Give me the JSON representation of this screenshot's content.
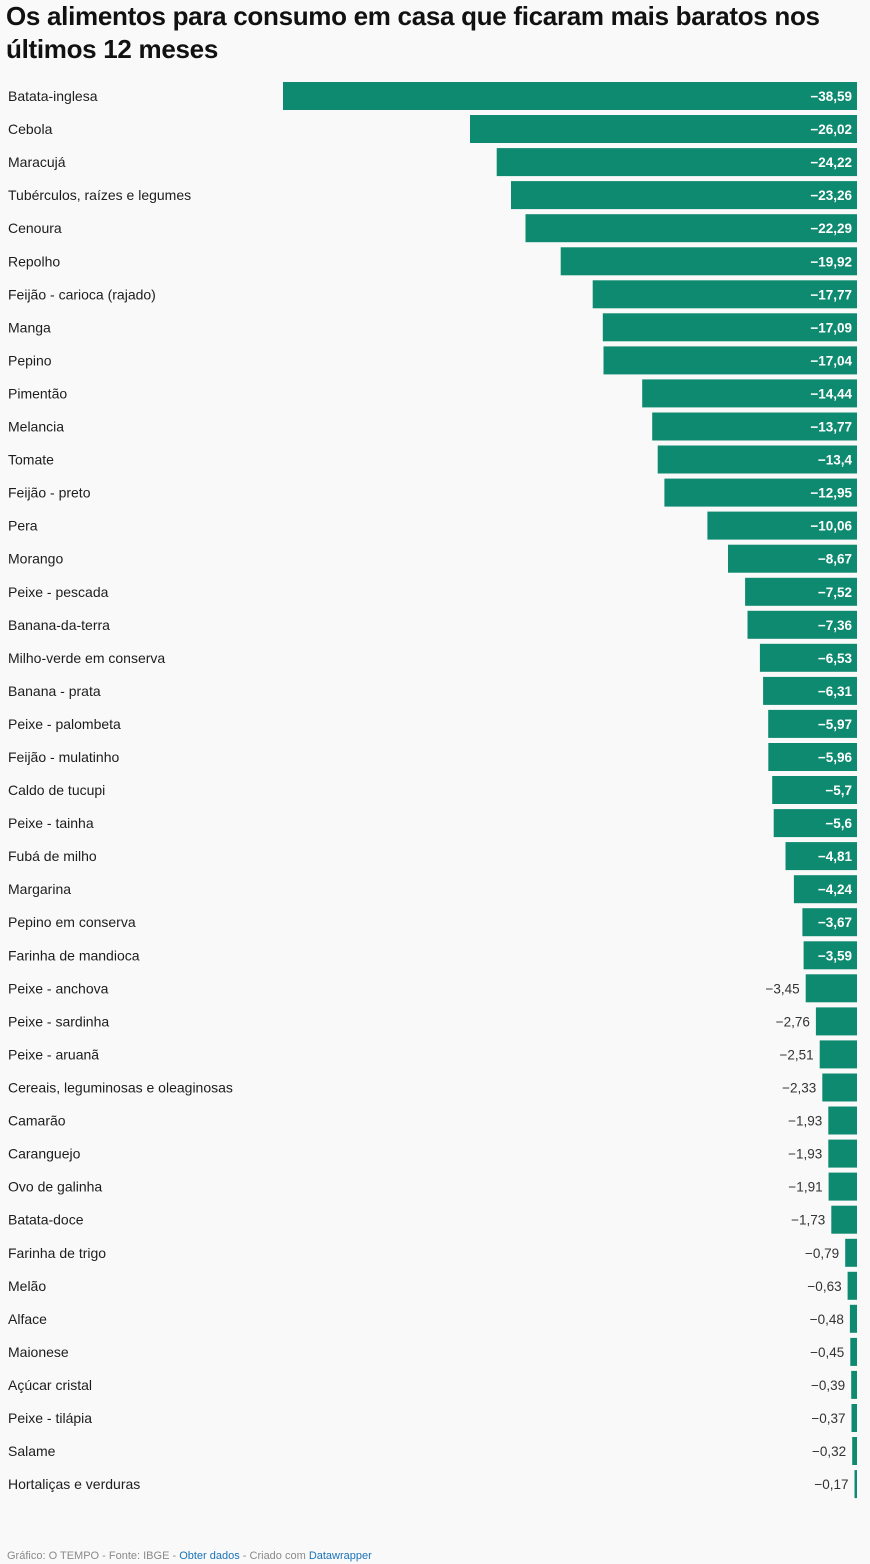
{
  "title": "Os alimentos para consumo em casa que ficaram mais baratos nos últimos 12 meses",
  "colors": {
    "bar": "#0d8a6f",
    "label_inside": "#ffffff",
    "label_outside": "#333333",
    "link": "#1a73b8"
  },
  "footer": {
    "grafico": "Gráfico: O TEMPO",
    "sep1": " - ",
    "fonte": "Fonte: IBGE",
    "sep2": " - ",
    "obter": "Obter dados",
    "sep3": " - ",
    "criado": "Criado com ",
    "datawrapper": "Datawrapper"
  },
  "chart_data": {
    "type": "bar",
    "orientation": "horizontal",
    "categories": [
      "Batata-inglesa",
      "Cebola",
      "Maracujá",
      "Tubérculos, raízes e legumes",
      "Cenoura",
      "Repolho",
      "Feijão - carioca (rajado)",
      "Manga",
      "Pepino",
      "Pimentão",
      "Melancia",
      "Tomate",
      "Feijão - preto",
      "Pera",
      "Morango",
      "Peixe - pescada",
      "Banana-da-terra",
      "Milho-verde em conserva",
      "Banana - prata",
      "Peixe - palombeta",
      "Feijão - mulatinho",
      "Caldo de tucupi",
      "Peixe - tainha",
      "Fubá de milho",
      "Margarina",
      "Pepino em conserva",
      "Farinha de mandioca",
      "Peixe - anchova",
      "Peixe - sardinha",
      "Peixe - aruanã",
      "Cereais, leguminosas e oleaginosas",
      "Camarão",
      "Caranguejo",
      "Ovo de galinha",
      "Batata-doce",
      "Farinha de trigo",
      "Melão",
      "Alface",
      "Maionese",
      "Açúcar cristal",
      "Peixe - tilápia",
      "Salame",
      "Hortaliças e verduras"
    ],
    "values": [
      -38.59,
      -26.02,
      -24.22,
      -23.26,
      -22.29,
      -19.92,
      -17.77,
      -17.09,
      -17.04,
      -14.44,
      -13.77,
      -13.4,
      -12.95,
      -10.06,
      -8.67,
      -7.52,
      -7.36,
      -6.53,
      -6.31,
      -5.97,
      -5.96,
      -5.7,
      -5.6,
      -4.81,
      -4.24,
      -3.67,
      -3.59,
      -3.45,
      -2.76,
      -2.51,
      -2.33,
      -1.93,
      -1.93,
      -1.91,
      -1.73,
      -0.79,
      -0.63,
      -0.48,
      -0.45,
      -0.39,
      -0.37,
      -0.32,
      -0.17
    ],
    "value_labels": [
      "−38,59",
      "−26,02",
      "−24,22",
      "−23,26",
      "−22,29",
      "−19,92",
      "−17,77",
      "−17,09",
      "−17,04",
      "−14,44",
      "−13,77",
      "−13,4",
      "−12,95",
      "−10,06",
      "−8,67",
      "−7,52",
      "−7,36",
      "−6,53",
      "−6,31",
      "−5,97",
      "−5,96",
      "−5,7",
      "−5,6",
      "−4,81",
      "−4,24",
      "−3,67",
      "−3,59",
      "−3,45",
      "−2,76",
      "−2,51",
      "−2,33",
      "−1,93",
      "−1,93",
      "−1,91",
      "−1,73",
      "−0,79",
      "−0,63",
      "−0,48",
      "−0,45",
      "−0,39",
      "−0,37",
      "−0,32",
      "−0,17"
    ],
    "xlim": [
      -38.59,
      0
    ],
    "grid": false,
    "legend": "none"
  }
}
